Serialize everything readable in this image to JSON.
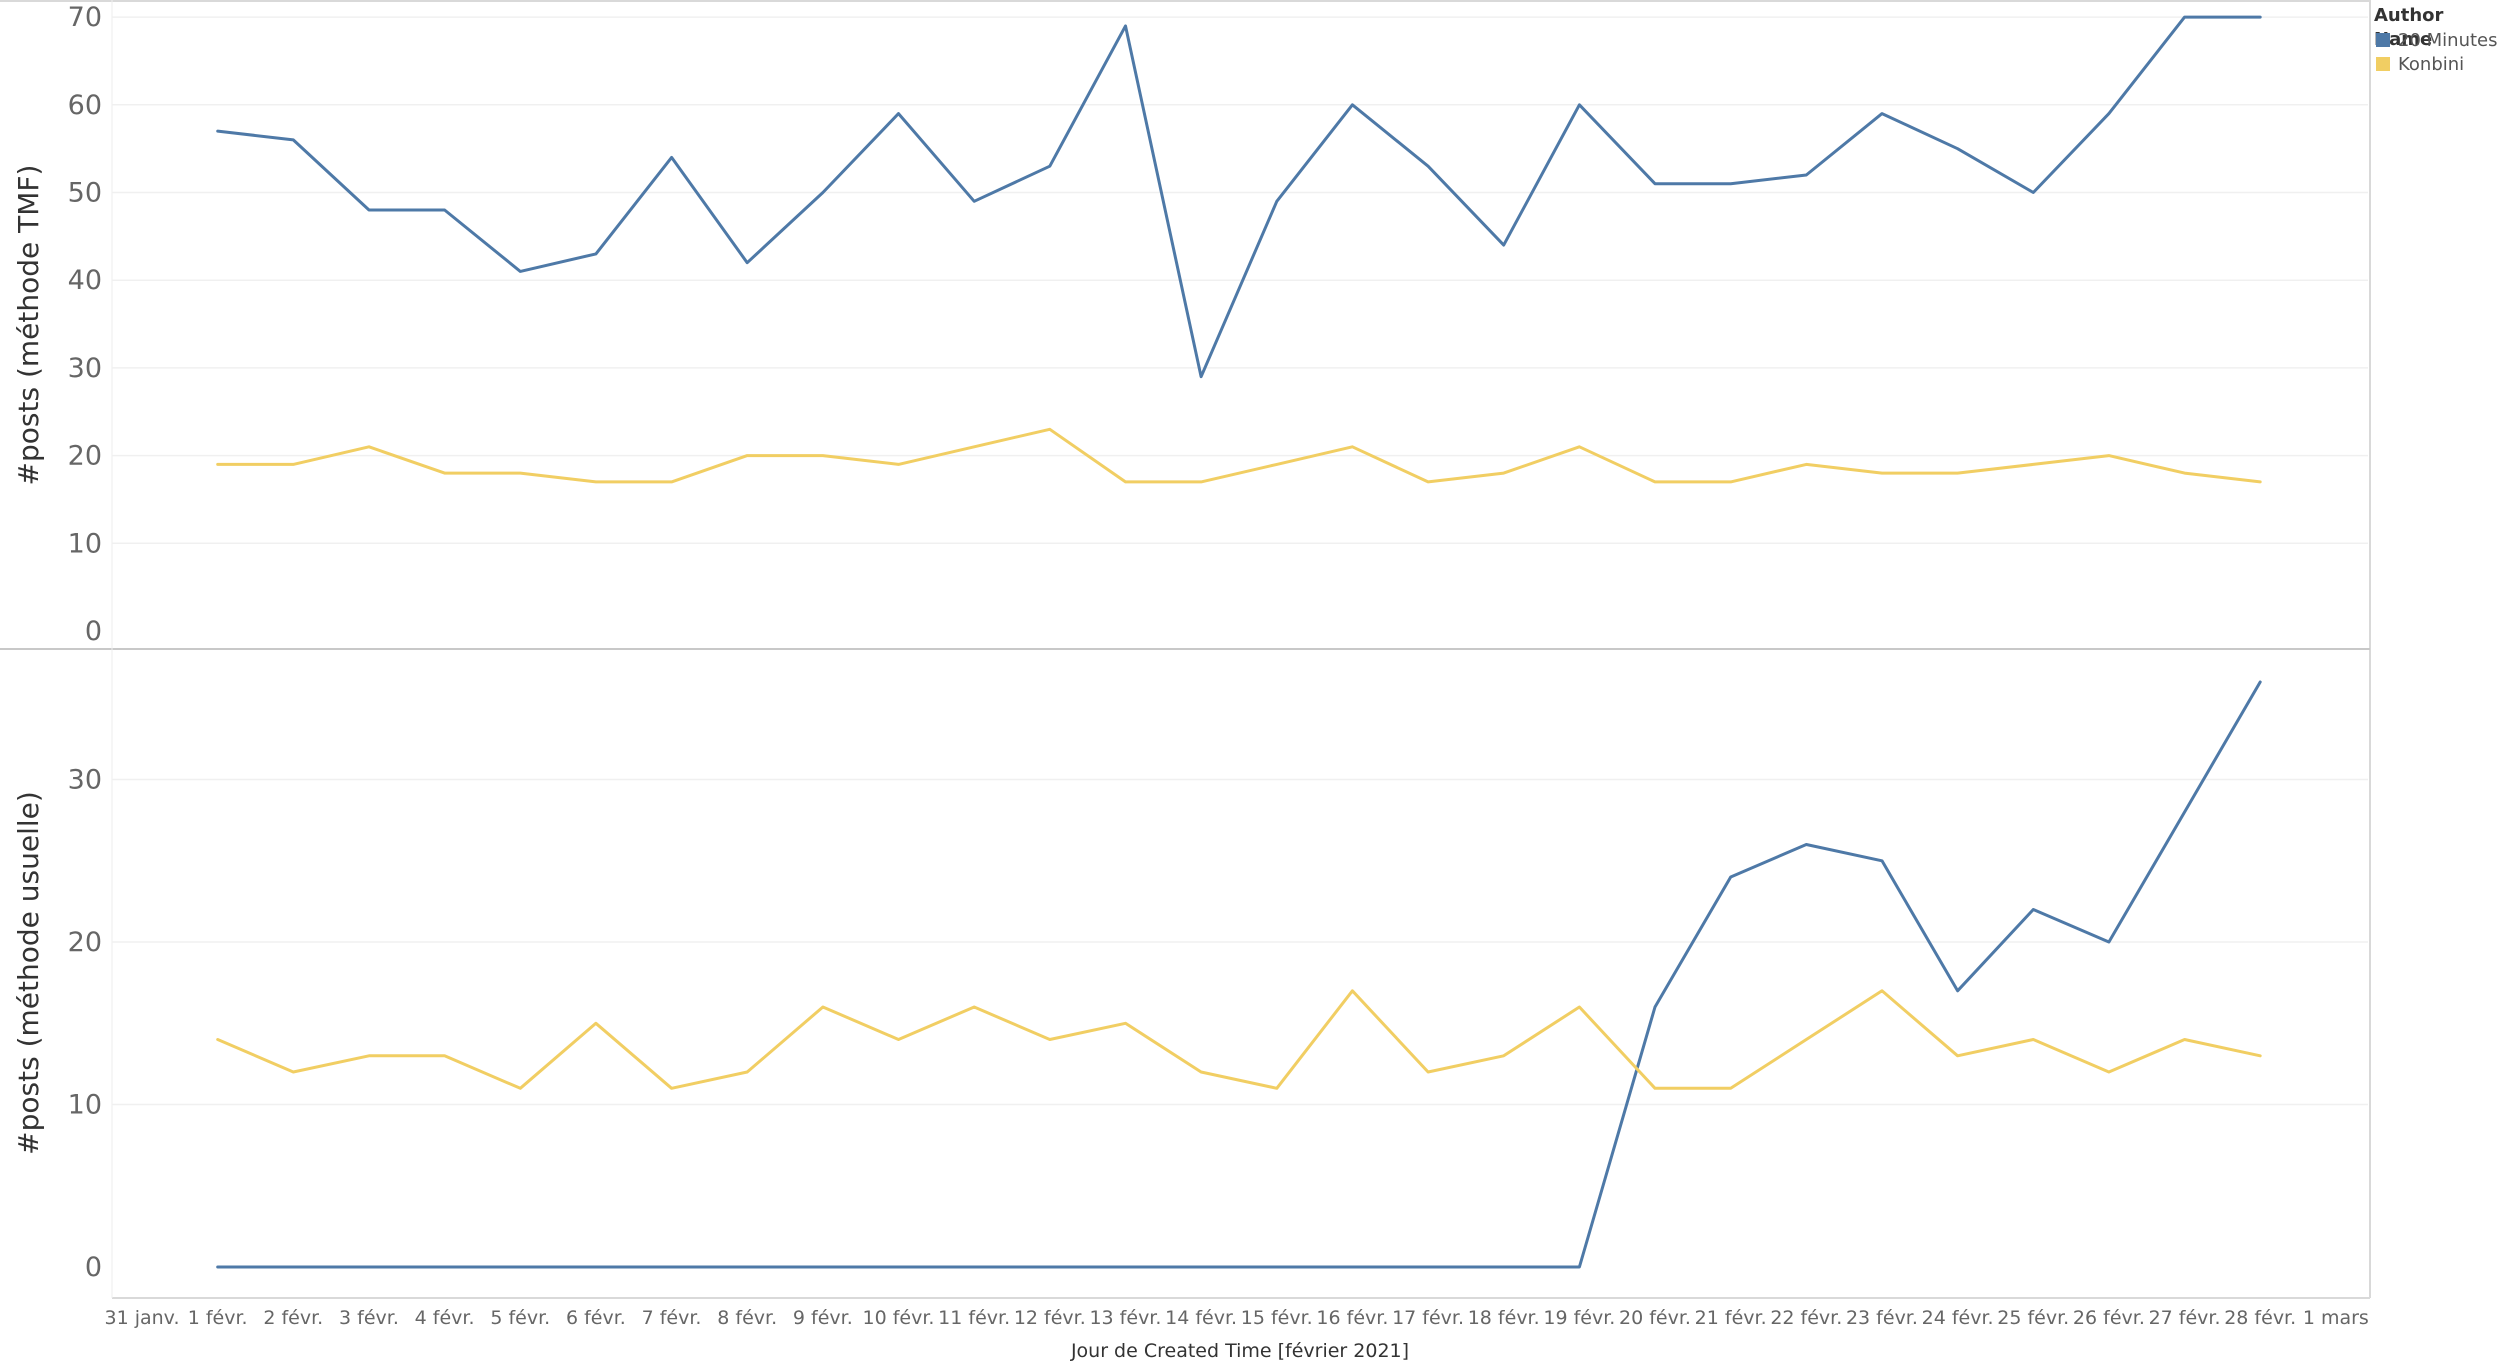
{
  "chart_data": [
    {
      "type": "line",
      "ylabel": "#posts (méthode TMF)",
      "ylim": [
        0,
        72
      ],
      "yticks": [
        0,
        10,
        20,
        30,
        40,
        50,
        60,
        70
      ],
      "grid": true,
      "series": [
        {
          "name": "20 Minutes",
          "color": "#4e79a7",
          "values": [
            57,
            56,
            48,
            48,
            41,
            43,
            54,
            42,
            50,
            59,
            49,
            53,
            69,
            29,
            49,
            60,
            53,
            44,
            60,
            51,
            51,
            52,
            59,
            55,
            50,
            59,
            70,
            70
          ]
        },
        {
          "name": "Konbini",
          "color": "#f1ce63",
          "values": [
            19,
            19,
            21,
            18,
            18,
            17,
            17,
            20,
            20,
            19,
            21,
            23,
            17,
            17,
            19,
            21,
            17,
            18,
            21,
            17,
            17,
            19,
            18,
            18,
            19,
            20,
            18,
            17
          ]
        }
      ]
    },
    {
      "type": "line",
      "ylabel": "#posts (méthode usuelle)",
      "ylim": [
        0,
        37
      ],
      "yticks": [
        0,
        10,
        20,
        30
      ],
      "grid": true,
      "series": [
        {
          "name": "20 Minutes",
          "color": "#4e79a7",
          "values": [
            0,
            0,
            0,
            0,
            0,
            0,
            0,
            0,
            0,
            0,
            0,
            0,
            0,
            0,
            0,
            0,
            0,
            0,
            0,
            16,
            24,
            26,
            25,
            17,
            22,
            20,
            28,
            36
          ]
        },
        {
          "name": "Konbini",
          "color": "#f1ce63",
          "values": [
            14,
            12,
            13,
            13,
            11,
            15,
            11,
            12,
            16,
            14,
            16,
            14,
            15,
            12,
            11,
            17,
            12,
            13,
            16,
            11,
            11,
            14,
            17,
            13,
            14,
            12,
            14,
            13
          ]
        }
      ]
    }
  ],
  "x_axis": {
    "title": "Jour de Created Time [février 2021]",
    "ticks": [
      "31 janv.",
      "1 févr.",
      "2 févr.",
      "3 févr.",
      "4 févr.",
      "5 févr.",
      "6 févr.",
      "7 févr.",
      "8 févr.",
      "9 févr.",
      "10 févr.",
      "11 févr.",
      "12 févr.",
      "13 févr.",
      "14 févr.",
      "15 févr.",
      "16 févr.",
      "17 févr.",
      "18 févr.",
      "19 févr.",
      "20 févr.",
      "21 févr.",
      "22 févr.",
      "23 févr.",
      "24 févr.",
      "25 févr.",
      "26 févr.",
      "27 févr.",
      "28 févr.",
      "1 mars"
    ]
  },
  "legend": {
    "title": "Author Name",
    "items": [
      {
        "label": "20 Minutes",
        "color": "#4e79a7"
      },
      {
        "label": "Konbini",
        "color": "#f1ce63"
      }
    ]
  }
}
